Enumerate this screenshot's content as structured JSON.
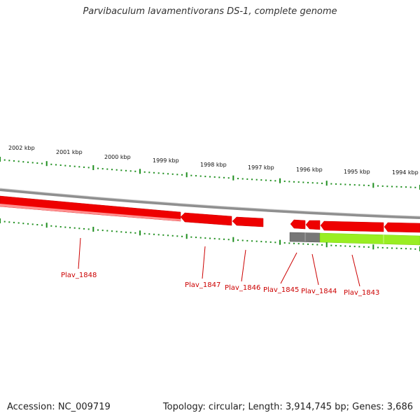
{
  "title": "Parvibaculum lavamentivorans DS-1, complete genome",
  "footer": {
    "accession": "Accession: NC_009719",
    "topology": "Topology: circular; Length: 3,914,745 bp; Genes: 3,686"
  },
  "colors": {
    "forward_gene": "#ee0000",
    "reverse_gene": "#ee0000",
    "gene_highlight": "#ff8888",
    "rna_gene": "#99ee22",
    "pseudo_gene": "#777777",
    "backbone": "#999999",
    "tick_green": "#1f8f1f",
    "label_red": "#cc0000"
  },
  "kbp_labels": [
    "2002 kbp",
    "2001 kbp",
    "2000 kbp",
    "1999 kbp",
    "1998 kbp",
    "1997 kbp",
    "1996 kbp",
    "1995 kbp",
    "1994 kbp"
  ],
  "gene_labels": [
    "Plav_1848",
    "Plav_1847",
    "Plav_1846",
    "Plav_1845",
    "Plav_1844",
    "Plav_1843"
  ]
}
